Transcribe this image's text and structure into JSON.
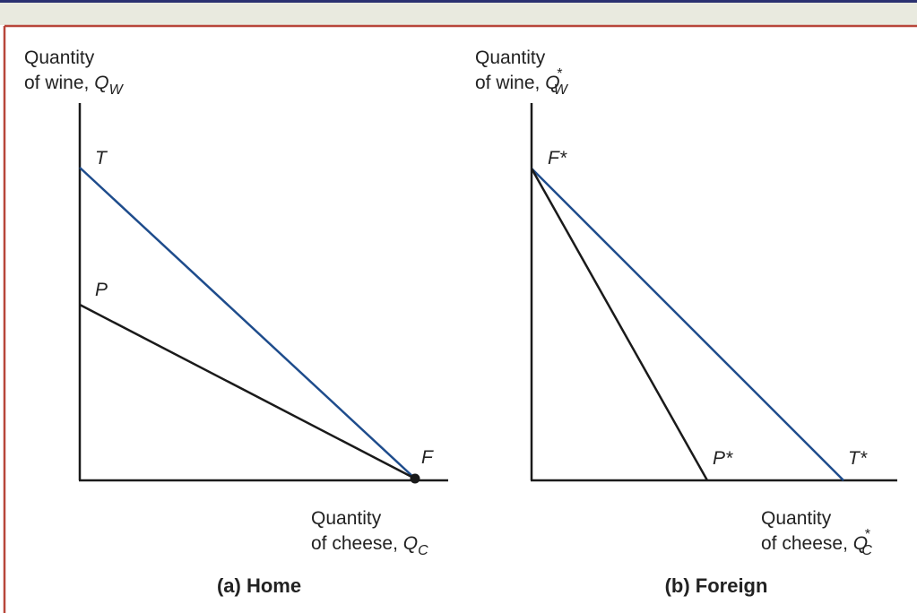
{
  "colors": {
    "top_band": "#e9eadf",
    "top_rule": "#2b3170",
    "frame": "#b8463a",
    "axis": "#1a1a1a",
    "trade_line": "#1e4c8c",
    "production_line": "#1a1a1a"
  },
  "home": {
    "y_axis_label": {
      "line1": "Quantity",
      "line2": "of wine, ",
      "symbol": "Q",
      "sub": "W"
    },
    "x_axis_label": {
      "line1": "Quantity",
      "line2": "of cheese, ",
      "symbol": "Q",
      "sub": "C"
    },
    "points": {
      "T": "T",
      "P": "P",
      "F": "F"
    },
    "caption": "(a) Home"
  },
  "foreign": {
    "y_axis_label": {
      "line1": "Quantity",
      "line2": "of wine, ",
      "symbol": "Q",
      "sub": "W",
      "sup": "*"
    },
    "x_axis_label": {
      "line1": "Quantity",
      "line2": "of cheese, ",
      "symbol": "Q",
      "sub": "C",
      "sup": "*"
    },
    "points": {
      "F": "F*",
      "P": "P*",
      "T": "T*"
    },
    "caption": "(b) Foreign"
  }
}
